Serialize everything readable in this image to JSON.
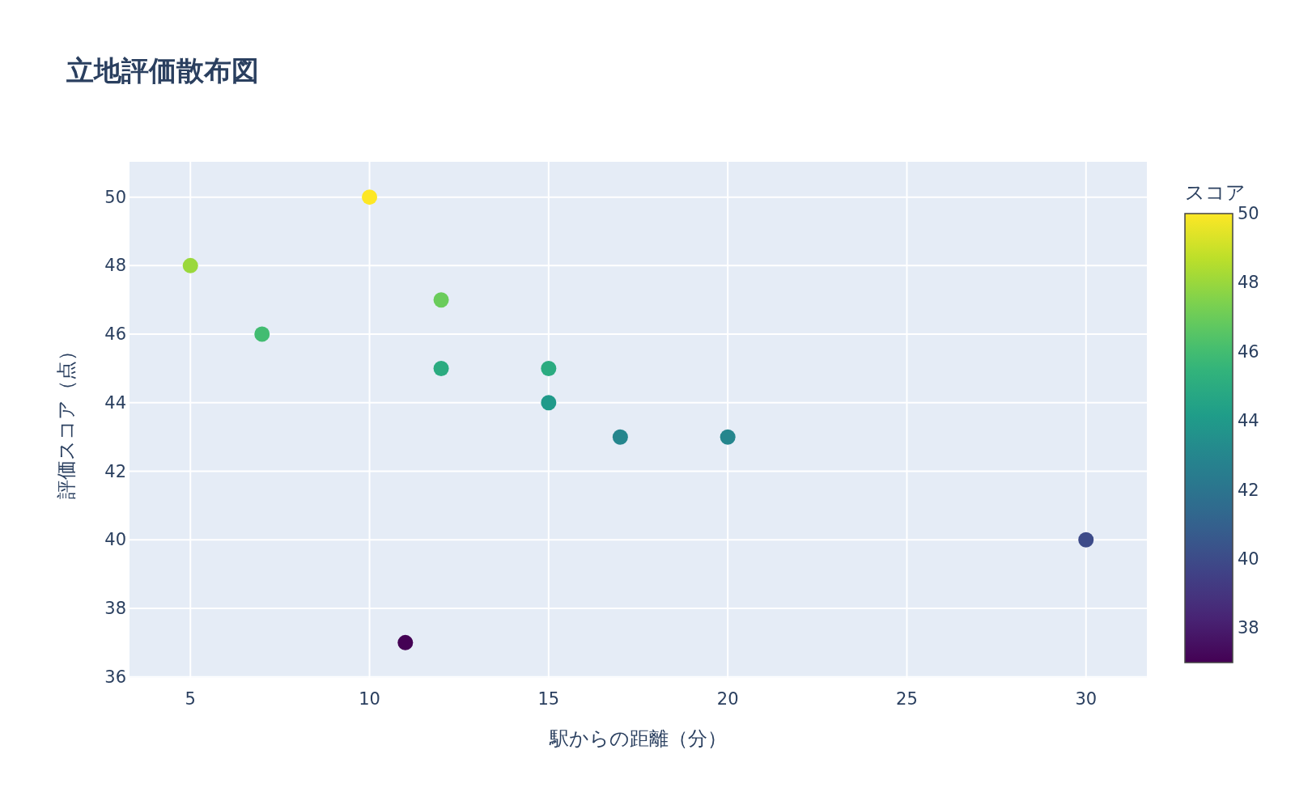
{
  "chart_data": {
    "type": "scatter",
    "title": "立地評価散布図",
    "xlabel": "駅からの距離（分）",
    "ylabel": "評価スコア（点）",
    "clabel": "スコア",
    "x": [
      5,
      7,
      10,
      11,
      12,
      12,
      15,
      15,
      17,
      20,
      30
    ],
    "values": [
      48,
      46,
      50,
      37,
      47,
      45,
      45,
      44,
      43,
      43,
      40
    ],
    "cvalues": [
      48,
      46,
      50,
      37,
      47,
      45,
      45,
      44,
      43,
      43,
      40
    ],
    "clim": [
      37,
      50
    ],
    "cticks": [
      38,
      40,
      42,
      44,
      46,
      48,
      50
    ],
    "xlim": [
      3.3,
      31.7
    ],
    "ylim": [
      35.97,
      51.03
    ],
    "xticks": [
      5,
      10,
      15,
      20,
      25,
      30
    ],
    "yticks": [
      36,
      38,
      40,
      42,
      44,
      46,
      48,
      50
    ],
    "grid": true,
    "marker": "circle"
  }
}
